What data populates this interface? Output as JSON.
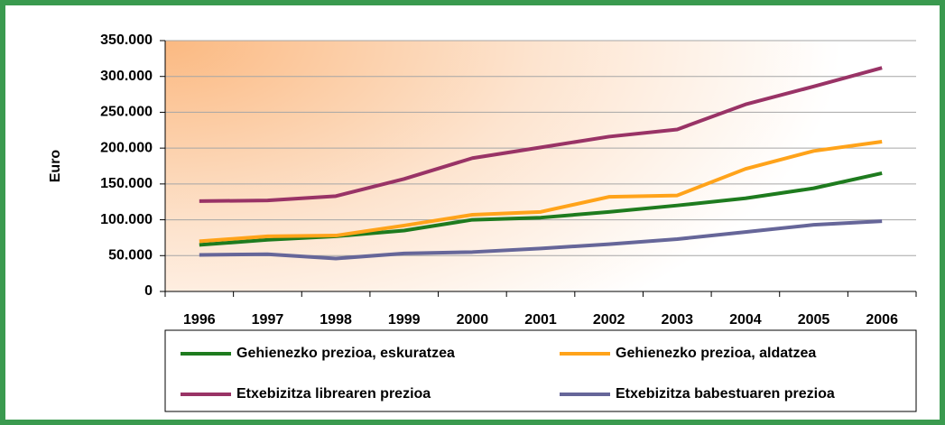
{
  "chart_data": {
    "type": "line",
    "ylabel": "Euro",
    "categories": [
      "1996",
      "1997",
      "1998",
      "1999",
      "2000",
      "2001",
      "2002",
      "2003",
      "2004",
      "2005",
      "2006"
    ],
    "series": [
      {
        "name": "Gehienezko prezioa, eskuratzea",
        "color": "#1e7b1e",
        "values": [
          65000,
          72000,
          77000,
          85000,
          100000,
          103000,
          111000,
          120000,
          130000,
          144000,
          165000
        ]
      },
      {
        "name": "Gehienezko prezioa, aldatzea",
        "color": "#ffa31a",
        "values": [
          70000,
          77000,
          78000,
          92000,
          107000,
          111000,
          132000,
          134000,
          171000,
          196000,
          209000
        ]
      },
      {
        "name": "Etxebizitza librearen prezioa",
        "color": "#993366",
        "values": [
          126000,
          127000,
          133000,
          157000,
          186000,
          201000,
          216000,
          226000,
          261000,
          286000,
          312000
        ]
      },
      {
        "name": "Etxebizitza babestuaren prezioa",
        "color": "#666699",
        "values": [
          51000,
          52000,
          46000,
          53000,
          55000,
          60000,
          66000,
          73000,
          83000,
          93000,
          98000
        ]
      }
    ],
    "ylim": [
      0,
      350000
    ],
    "yticks": [
      0,
      {
        "value": 50000,
        "label": "50.000"
      },
      {
        "value": 100000,
        "label": "100.000"
      },
      {
        "value": 150000,
        "label": "150.000"
      },
      {
        "value": 200000,
        "label": "200.000"
      },
      {
        "value": 250000,
        "label": "250.000"
      },
      {
        "value": 300000,
        "label": "300.000"
      },
      {
        "value": 350000,
        "label": "350.000"
      }
    ],
    "grid": true,
    "legend": "bottom"
  }
}
